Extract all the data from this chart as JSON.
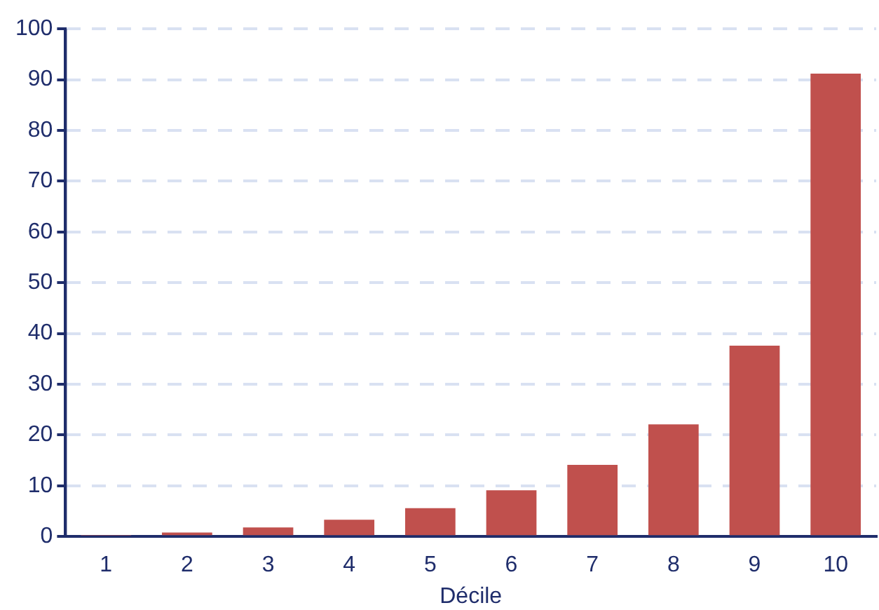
{
  "chart_data": {
    "type": "bar",
    "xlabel": "Décile",
    "categories": [
      "1",
      "2",
      "3",
      "4",
      "5",
      "6",
      "7",
      "8",
      "9",
      "10"
    ],
    "values": [
      0.2,
      0.8,
      1.8,
      3.3,
      5.6,
      9.1,
      14.1,
      22.1,
      37.6,
      91.2
    ],
    "color": "#c0504d",
    "ylim": [
      0,
      100
    ],
    "yticks": [
      0,
      10,
      20,
      30,
      40,
      50,
      60,
      70,
      80,
      90,
      100
    ],
    "grid": "y",
    "legend": false
  }
}
